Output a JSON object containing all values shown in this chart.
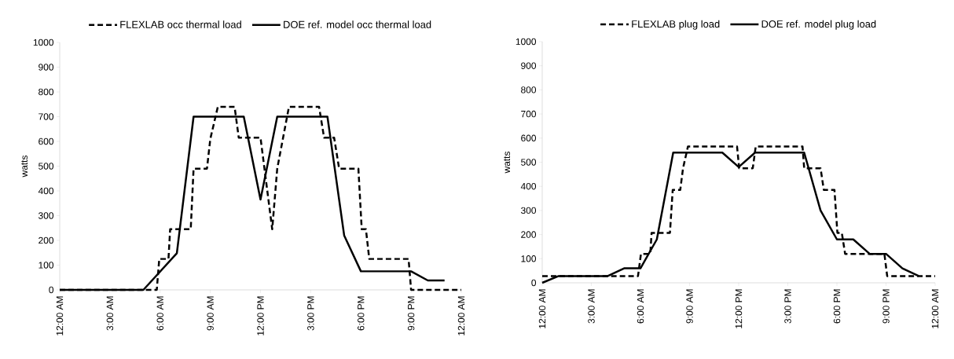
{
  "chart_data": [
    {
      "type": "line",
      "ylabel": "watts",
      "xlim": [
        0,
        24
      ],
      "ylim": [
        0,
        1000
      ],
      "legend": "top",
      "xticks": [
        {
          "value": 0,
          "label": "12:00 AM"
        },
        {
          "value": 3,
          "label": "3:00 AM"
        },
        {
          "value": 6,
          "label": "6:00 AM"
        },
        {
          "value": 9,
          "label": "9:00 AM"
        },
        {
          "value": 12,
          "label": "12:00 PM"
        },
        {
          "value": 15,
          "label": "3:00 PM"
        },
        {
          "value": 18,
          "label": "6:00 PM"
        },
        {
          "value": 21,
          "label": "9:00 PM"
        },
        {
          "value": 24,
          "label": "12:00 AM"
        }
      ],
      "yticks": [
        0,
        100,
        200,
        300,
        400,
        500,
        600,
        700,
        800,
        900,
        1000
      ],
      "series": [
        {
          "name": "FLEXLAB occ thermal load",
          "color": "#000000",
          "line_style": "dashed",
          "x": [
            0,
            5.8,
            5.95,
            6.5,
            6.6,
            7.83,
            8.0,
            8.8,
            9.0,
            9.45,
            10.45,
            10.7,
            12.0,
            12.7,
            13.0,
            13.7,
            15.5,
            15.8,
            16.4,
            16.7,
            17.85,
            18.05,
            18.3,
            18.5,
            20.85,
            21.0,
            24
          ],
          "values": [
            0,
            0,
            125,
            125,
            245,
            245,
            490,
            490,
            610,
            740,
            740,
            615,
            615,
            245,
            490,
            740,
            740,
            615,
            615,
            490,
            490,
            245,
            245,
            125,
            125,
            0,
            0
          ]
        },
        {
          "name": "DOE ref. model occ thermal load",
          "color": "#000000",
          "line_style": "solid",
          "x": [
            0,
            5,
            7,
            8,
            11,
            12,
            13,
            16,
            17,
            18,
            21,
            22,
            23
          ],
          "values": [
            0,
            0,
            148,
            700,
            700,
            365,
            700,
            700,
            220,
            75,
            75,
            38,
            38
          ]
        }
      ]
    },
    {
      "type": "line",
      "ylabel": "watts",
      "xlim": [
        0,
        24
      ],
      "ylim": [
        0,
        1000
      ],
      "legend": "top",
      "xticks": [
        {
          "value": 0,
          "label": "12:00 AM"
        },
        {
          "value": 3,
          "label": "3:00 AM"
        },
        {
          "value": 6,
          "label": "6:00 AM"
        },
        {
          "value": 9,
          "label": "9:00 AM"
        },
        {
          "value": 12,
          "label": "12:00 PM"
        },
        {
          "value": 15,
          "label": "3:00 PM"
        },
        {
          "value": 18,
          "label": "6:00 PM"
        },
        {
          "value": 21,
          "label": "9:00 PM"
        },
        {
          "value": 24,
          "label": "12:00 AM"
        }
      ],
      "yticks": [
        0,
        100,
        200,
        300,
        400,
        500,
        600,
        700,
        800,
        900,
        1000
      ],
      "series": [
        {
          "name": "FLEXLAB plug load",
          "color": "#000000",
          "line_style": "dashed",
          "x": [
            0,
            5.85,
            6.03,
            6.6,
            6.68,
            7.8,
            7.97,
            8.43,
            8.6,
            8.9,
            11.9,
            12.03,
            12.86,
            13.04,
            15.9,
            16.0,
            17.0,
            17.2,
            17.85,
            18.03,
            18.3,
            18.5,
            20.9,
            21.07,
            24
          ],
          "values": [
            28,
            28,
            120,
            120,
            207,
            207,
            385,
            385,
            475,
            565,
            565,
            475,
            475,
            565,
            565,
            475,
            475,
            385,
            385,
            207,
            207,
            120,
            120,
            28,
            28
          ]
        },
        {
          "name": "DOE ref. model plug load",
          "color": "#000000",
          "line_style": "solid",
          "x": [
            0,
            1,
            4,
            5,
            6,
            7,
            8,
            11,
            12,
            13,
            16,
            17,
            18,
            19,
            20,
            21,
            22,
            23
          ],
          "values": [
            0,
            28,
            28,
            60,
            60,
            180,
            540,
            540,
            480,
            540,
            540,
            300,
            180,
            180,
            120,
            120,
            60,
            28
          ]
        }
      ]
    }
  ]
}
